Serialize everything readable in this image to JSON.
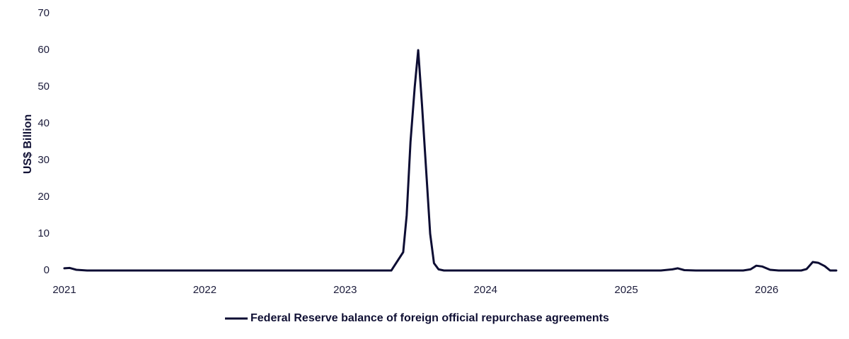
{
  "chart_data": {
    "type": "line",
    "title": "",
    "xlabel": "",
    "ylabel": "US$ Billion",
    "ylim": [
      0,
      70
    ],
    "yticks": [
      0,
      10,
      20,
      30,
      40,
      50,
      60,
      70
    ],
    "xlim": [
      "2021-01-01",
      "2026-07-01"
    ],
    "xticks": [
      "2021",
      "2022",
      "2023",
      "2024",
      "2025",
      "2026"
    ],
    "grid": false,
    "legend_position": "bottom-center",
    "line_color": "#0d0d33",
    "series": [
      {
        "name": "Federal Reserve balance of foreign official repurchase agreements",
        "points": [
          [
            "2021-01-01",
            0.6
          ],
          [
            "2021-01-15",
            0.7
          ],
          [
            "2021-02-01",
            0.2
          ],
          [
            "2021-03-01",
            0.0
          ],
          [
            "2022-01-01",
            0.0
          ],
          [
            "2023-01-01",
            0.0
          ],
          [
            "2023-05-01",
            0.0
          ],
          [
            "2023-06-01",
            5.0
          ],
          [
            "2023-06-10",
            15.0
          ],
          [
            "2023-06-20",
            35.0
          ],
          [
            "2023-07-01",
            50.0
          ],
          [
            "2023-07-10",
            60.0
          ],
          [
            "2023-07-20",
            45.0
          ],
          [
            "2023-08-01",
            25.0
          ],
          [
            "2023-08-10",
            10.0
          ],
          [
            "2023-08-20",
            2.0
          ],
          [
            "2023-09-01",
            0.3
          ],
          [
            "2023-09-15",
            0.0
          ],
          [
            "2024-01-01",
            0.0
          ],
          [
            "2025-01-01",
            0.0
          ],
          [
            "2025-04-01",
            0.0
          ],
          [
            "2025-05-01",
            0.3
          ],
          [
            "2025-05-15",
            0.6
          ],
          [
            "2025-06-01",
            0.1
          ],
          [
            "2025-07-01",
            0.0
          ],
          [
            "2025-11-01",
            0.0
          ],
          [
            "2025-11-20",
            0.3
          ],
          [
            "2025-12-05",
            1.3
          ],
          [
            "2025-12-20",
            1.1
          ],
          [
            "2026-01-10",
            0.2
          ],
          [
            "2026-02-01",
            0.0
          ],
          [
            "2026-04-01",
            0.0
          ],
          [
            "2026-04-15",
            0.4
          ],
          [
            "2026-05-01",
            2.3
          ],
          [
            "2026-05-15",
            2.1
          ],
          [
            "2026-06-01",
            1.2
          ],
          [
            "2026-06-15",
            0.0
          ],
          [
            "2026-07-01",
            0.0
          ]
        ]
      }
    ]
  }
}
